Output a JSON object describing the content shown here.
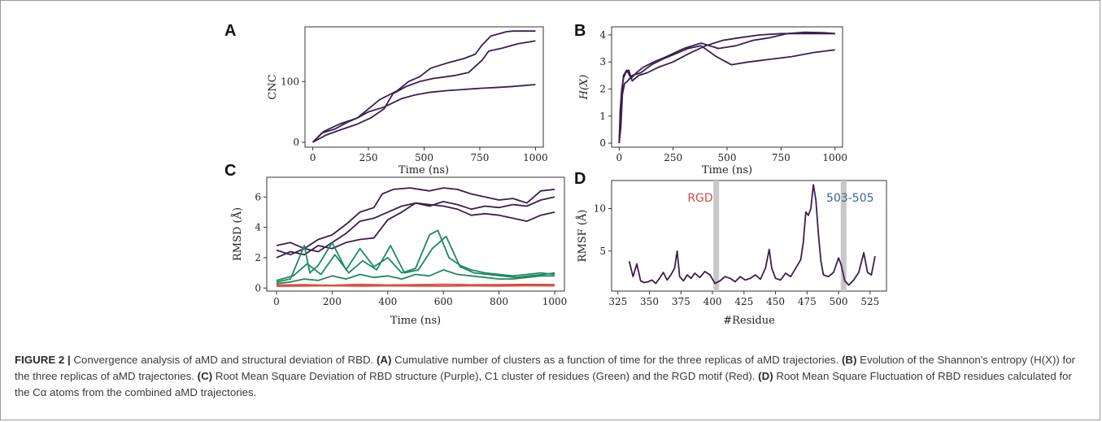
{
  "panels": [
    {
      "letter": "A",
      "ylabel": "CNC",
      "xlabel": "Time (ns)"
    },
    {
      "letter": "B",
      "ylabel": "H(X)",
      "xlabel": "Time (ns)"
    },
    {
      "letter": "C",
      "ylabel": "RMSD (Å)",
      "xlabel": "Time (ns)"
    },
    {
      "letter": "D",
      "ylabel": "RMSF (Å)",
      "xlabel": "#Residue",
      "annotations": [
        "RGD",
        "503-505"
      ]
    }
  ],
  "chart_data": [
    {
      "type": "line",
      "panel": "A",
      "xlabel": "Time (ns)",
      "ylabel": "CNC",
      "xlim": [
        -35,
        1035
      ],
      "ylim": [
        -8,
        190
      ],
      "xticks": [
        0,
        250,
        500,
        750,
        1000
      ],
      "yticks": [
        0,
        100
      ],
      "color": "#3b1f4f",
      "series": [
        {
          "x": [
            0,
            40,
            100,
            150,
            200,
            250,
            320,
            400,
            460,
            520,
            600,
            680,
            720,
            760,
            820,
            900,
            1000
          ],
          "y": [
            0,
            15,
            22,
            32,
            40,
            50,
            58,
            72,
            78,
            82,
            85,
            87,
            88,
            89,
            90,
            92,
            95
          ]
        },
        {
          "x": [
            0,
            50,
            120,
            200,
            250,
            300,
            380,
            430,
            480,
            530,
            600,
            680,
            730,
            760,
            800,
            870,
            900,
            1000
          ],
          "y": [
            0,
            18,
            30,
            40,
            55,
            70,
            85,
            100,
            108,
            122,
            130,
            138,
            145,
            160,
            175,
            182,
            183,
            183
          ]
        },
        {
          "x": [
            0,
            60,
            120,
            200,
            260,
            320,
            360,
            420,
            480,
            540,
            600,
            640,
            700,
            760,
            790,
            850,
            920,
            1000
          ],
          "y": [
            0,
            12,
            20,
            30,
            40,
            55,
            80,
            92,
            100,
            105,
            108,
            110,
            115,
            135,
            150,
            155,
            162,
            167
          ]
        }
      ]
    },
    {
      "type": "line",
      "panel": "B",
      "xlabel": "Time (ns)",
      "ylabel": "H(X)",
      "xlim": [
        -35,
        1035
      ],
      "ylim": [
        -0.15,
        4.3
      ],
      "xticks": [
        0,
        250,
        500,
        750,
        1000
      ],
      "yticks": [
        0,
        1,
        2,
        3,
        4
      ],
      "color": "#3b1f4f",
      "series": [
        {
          "x": [
            0,
            5,
            12,
            20,
            30,
            45,
            60,
            90,
            130,
            180,
            250,
            320,
            400,
            480,
            560,
            650,
            750,
            850,
            950,
            1000
          ],
          "y": [
            0,
            1.2,
            2.0,
            2.4,
            2.6,
            2.7,
            2.3,
            2.5,
            2.6,
            2.8,
            3.0,
            3.3,
            3.6,
            3.8,
            3.9,
            4.0,
            4.05,
            4.05,
            4.05,
            4.05
          ]
        },
        {
          "x": [
            0,
            8,
            15,
            25,
            40,
            60,
            100,
            150,
            200,
            260,
            320,
            380,
            450,
            520,
            600,
            700,
            800,
            900,
            1000
          ],
          "y": [
            0,
            0.6,
            1.8,
            2.2,
            2.3,
            2.5,
            2.6,
            2.9,
            3.1,
            3.3,
            3.5,
            3.6,
            3.2,
            2.9,
            3.0,
            3.1,
            3.2,
            3.35,
            3.45
          ]
        },
        {
          "x": [
            0,
            10,
            20,
            35,
            55,
            80,
            110,
            160,
            220,
            300,
            380,
            460,
            540,
            620,
            700,
            780,
            860,
            950,
            1000
          ],
          "y": [
            0,
            1.5,
            2.5,
            2.7,
            2.4,
            2.6,
            2.8,
            3.0,
            3.2,
            3.5,
            3.7,
            3.5,
            3.6,
            3.8,
            3.9,
            4.05,
            4.1,
            4.08,
            4.05
          ]
        }
      ]
    },
    {
      "type": "line",
      "panel": "C",
      "xlabel": "Time (ns)",
      "ylabel": "RMSD (Å)",
      "xlim": [
        -35,
        1035
      ],
      "ylim": [
        -0.2,
        7.3
      ],
      "xticks": [
        0,
        200,
        400,
        600,
        800,
        1000
      ],
      "yticks": [
        0,
        2,
        4,
        6
      ],
      "series": [
        {
          "color": "#3b1f4f",
          "x": [
            0,
            50,
            100,
            150,
            200,
            250,
            300,
            350,
            380,
            420,
            480,
            550,
            600,
            650,
            700,
            750,
            800,
            850,
            900,
            950,
            1000
          ],
          "y": [
            2.8,
            3.0,
            2.6,
            3.2,
            3.5,
            4.2,
            5.0,
            5.3,
            6.2,
            6.5,
            6.6,
            6.4,
            6.6,
            6.5,
            6.2,
            6.0,
            5.8,
            5.9,
            5.6,
            6.4,
            6.5
          ]
        },
        {
          "color": "#3b1f4f",
          "x": [
            0,
            50,
            100,
            150,
            200,
            250,
            300,
            350,
            400,
            450,
            500,
            550,
            600,
            650,
            700,
            750,
            800,
            850,
            900,
            950,
            1000
          ],
          "y": [
            2.0,
            2.4,
            2.2,
            2.8,
            2.6,
            3.0,
            3.2,
            3.3,
            4.5,
            5.0,
            5.6,
            5.4,
            5.7,
            5.5,
            5.2,
            5.4,
            5.3,
            5.5,
            5.4,
            5.8,
            6.0
          ]
        },
        {
          "color": "#3b1f4f",
          "x": [
            0,
            50,
            100,
            150,
            200,
            250,
            300,
            350,
            400,
            450,
            500,
            550,
            600,
            650,
            700,
            750,
            800,
            850,
            900,
            950,
            1000
          ],
          "y": [
            2.5,
            2.2,
            2.6,
            2.4,
            3.0,
            3.6,
            4.4,
            4.6,
            5.0,
            5.4,
            5.6,
            5.5,
            5.4,
            5.2,
            4.8,
            4.9,
            4.8,
            4.6,
            4.4,
            4.8,
            5.0
          ]
        },
        {
          "color": "#1e8a60",
          "x": [
            0,
            50,
            100,
            120,
            150,
            200,
            250,
            300,
            350,
            400,
            450,
            500,
            550,
            580,
            620,
            660,
            700,
            750,
            800,
            850,
            900,
            950,
            1000
          ],
          "y": [
            0.4,
            0.6,
            2.8,
            1.0,
            1.5,
            3.0,
            1.2,
            2.6,
            1.4,
            2.0,
            1.0,
            1.3,
            3.5,
            3.8,
            2.0,
            1.5,
            1.2,
            1.0,
            0.9,
            0.8,
            0.9,
            1.0,
            0.9
          ]
        },
        {
          "color": "#1e8a60",
          "x": [
            0,
            60,
            110,
            160,
            210,
            260,
            310,
            360,
            410,
            460,
            510,
            560,
            610,
            660,
            710,
            760,
            810,
            860,
            910,
            960,
            1000
          ],
          "y": [
            0.5,
            0.8,
            1.6,
            0.9,
            2.2,
            1.0,
            1.8,
            1.2,
            2.8,
            1.0,
            1.2,
            2.6,
            3.4,
            1.4,
            1.0,
            0.9,
            0.8,
            0.7,
            0.8,
            0.9,
            1.0
          ]
        },
        {
          "color": "#1e8a60",
          "x": [
            0,
            50,
            100,
            150,
            200,
            250,
            300,
            350,
            400,
            450,
            500,
            550,
            600,
            650,
            700,
            750,
            800,
            850,
            900,
            950,
            1000
          ],
          "y": [
            0.3,
            0.4,
            0.6,
            0.5,
            0.8,
            0.6,
            0.9,
            0.7,
            0.8,
            0.6,
            0.9,
            0.8,
            1.2,
            0.9,
            0.8,
            0.7,
            0.6,
            0.6,
            0.7,
            0.8,
            0.8
          ]
        },
        {
          "color": "#e04a3a",
          "x": [
            0,
            100,
            200,
            300,
            400,
            500,
            600,
            700,
            800,
            900,
            1000
          ],
          "y": [
            0.2,
            0.22,
            0.18,
            0.24,
            0.2,
            0.22,
            0.25,
            0.21,
            0.22,
            0.24,
            0.23
          ]
        },
        {
          "color": "#e04a3a",
          "x": [
            0,
            100,
            200,
            300,
            400,
            500,
            600,
            700,
            800,
            900,
            1000
          ],
          "y": [
            0.12,
            0.14,
            0.16,
            0.13,
            0.15,
            0.14,
            0.13,
            0.15,
            0.14,
            0.16,
            0.15
          ]
        }
      ]
    },
    {
      "type": "line",
      "panel": "D",
      "xlabel": "#Residue",
      "ylabel": "RMSF (Å)",
      "xlim": [
        320,
        538
      ],
      "ylim": [
        0.3,
        13.3
      ],
      "xticks": [
        325,
        350,
        375,
        400,
        425,
        450,
        475,
        500,
        525
      ],
      "yticks": [
        5,
        10
      ],
      "color": "#3b1f4f",
      "highlights": [
        {
          "x": 403,
          "label": "RGD",
          "label_color": "#d24a4a"
        },
        {
          "x": 504,
          "label": "503-505",
          "label_color": "#3a6690"
        }
      ],
      "series": [
        {
          "x": [
            334,
            337,
            340,
            343,
            346,
            349,
            352,
            355,
            358,
            361,
            364,
            367,
            370,
            372,
            374,
            377,
            380,
            383,
            386,
            390,
            394,
            398,
            402,
            406,
            410,
            414,
            418,
            422,
            426,
            430,
            434,
            438,
            442,
            445,
            447,
            450,
            454,
            458,
            462,
            466,
            470,
            472,
            474,
            476,
            478,
            480,
            482,
            484,
            486,
            488,
            492,
            496,
            500,
            502,
            505,
            508,
            512,
            516,
            520,
            523,
            526,
            529
          ],
          "y": [
            3.8,
            2.0,
            3.5,
            1.5,
            1.3,
            1.4,
            1.6,
            1.2,
            1.8,
            2.5,
            1.6,
            2.2,
            3.0,
            5.0,
            2.0,
            1.5,
            2.2,
            1.8,
            2.4,
            1.9,
            2.6,
            2.2,
            1.2,
            1.5,
            2.0,
            1.8,
            1.4,
            2.0,
            1.6,
            1.8,
            2.2,
            1.7,
            3.0,
            5.2,
            3.0,
            1.8,
            1.6,
            2.4,
            2.0,
            3.0,
            4.0,
            6.0,
            9.6,
            9.2,
            10.0,
            12.8,
            11.0,
            7.0,
            3.8,
            2.2,
            2.0,
            2.5,
            4.2,
            3.4,
            1.5,
            1.0,
            1.6,
            2.5,
            4.8,
            2.5,
            2.2,
            4.4
          ]
        }
      ]
    }
  ],
  "caption": {
    "label": "FIGURE 2 |",
    "text": " Convergence analysis of aMD and structural deviation of RBD. ",
    "a_label": "(A)",
    "a_text": " Cumulative number of clusters as a function of time for the three replicas of aMD trajectories. ",
    "b_label": "(B)",
    "b_text": " Evolution of the Shannon's entropy (H(X)) for the three replicas of aMD trajectories. ",
    "c_label": "(C)",
    "c_text": " Root Mean Square Deviation of RBD structure (Purple), C1 cluster of residues (Green) and the RGD motif (Red). ",
    "d_label": "(D)",
    "d_text": " Root Mean Square Fluctuation of RBD residues calculated for the Cα atoms from the combined aMD trajectories."
  }
}
